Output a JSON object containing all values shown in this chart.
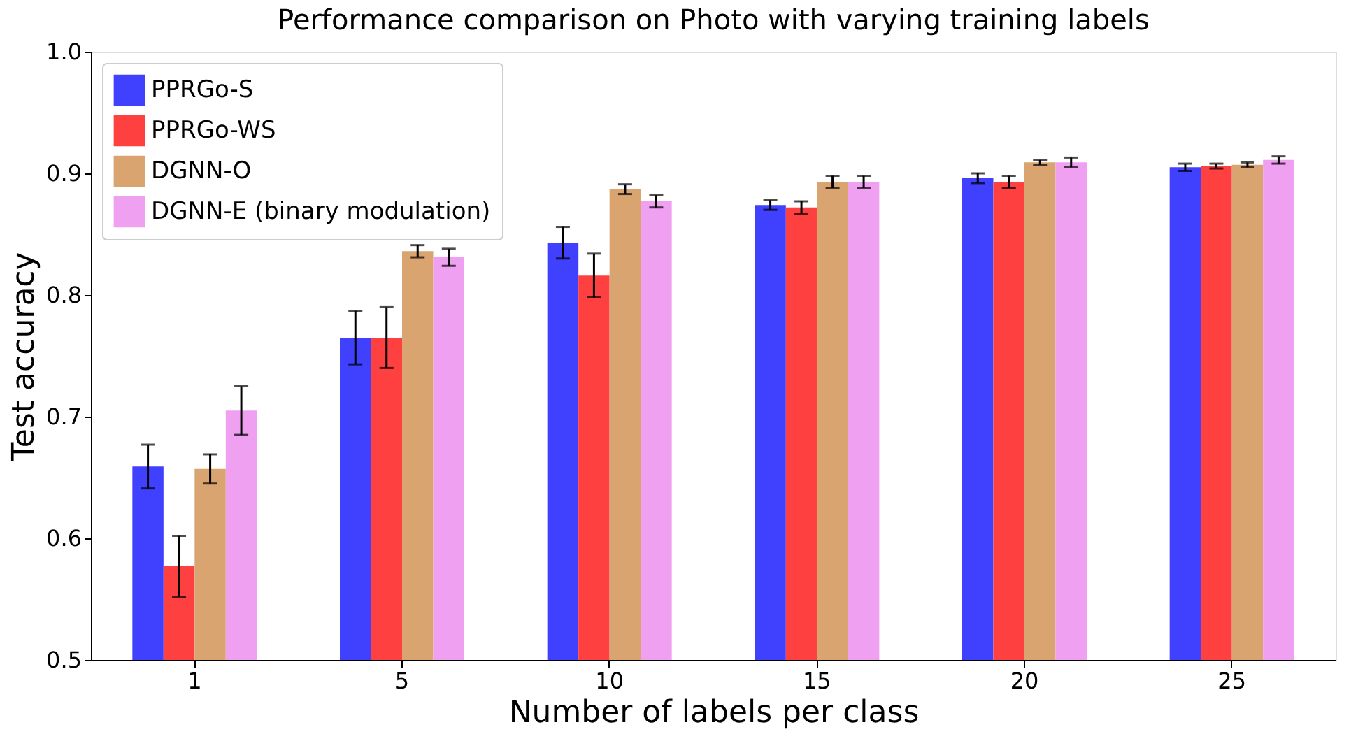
{
  "chart_data": {
    "type": "bar",
    "title": "Performance comparison on Photo with varying training labels",
    "xlabel": "Number of labels per class",
    "ylabel": "Test accuracy",
    "categories": [
      "1",
      "5",
      "10",
      "15",
      "20",
      "25"
    ],
    "series": [
      {
        "name": "PPRGo-S",
        "color": "#4040ff",
        "values": [
          0.659,
          0.765,
          0.843,
          0.874,
          0.896,
          0.905
        ],
        "errors": [
          0.018,
          0.022,
          0.013,
          0.004,
          0.004,
          0.003
        ]
      },
      {
        "name": "PPRGo-WS",
        "color": "#ff4040",
        "values": [
          0.577,
          0.765,
          0.816,
          0.872,
          0.893,
          0.906
        ],
        "errors": [
          0.025,
          0.025,
          0.018,
          0.005,
          0.005,
          0.002
        ]
      },
      {
        "name": "DGNN-O",
        "color": "#d9a46f",
        "values": [
          0.657,
          0.836,
          0.887,
          0.893,
          0.909,
          0.907
        ],
        "errors": [
          0.012,
          0.005,
          0.004,
          0.005,
          0.002,
          0.002
        ]
      },
      {
        "name": "DGNN-E (binary modulation)",
        "color": "#f0a0f0",
        "values": [
          0.705,
          0.831,
          0.877,
          0.893,
          0.909,
          0.911
        ],
        "errors": [
          0.02,
          0.007,
          0.005,
          0.005,
          0.004,
          0.003
        ]
      }
    ],
    "ylim": [
      0.5,
      1.0
    ],
    "yticks": [
      0.5,
      0.6,
      0.7,
      0.8,
      0.9,
      {
        "value": 1,
        "label": "1.0"
      }
    ],
    "grid": false,
    "legend": "top left"
  }
}
